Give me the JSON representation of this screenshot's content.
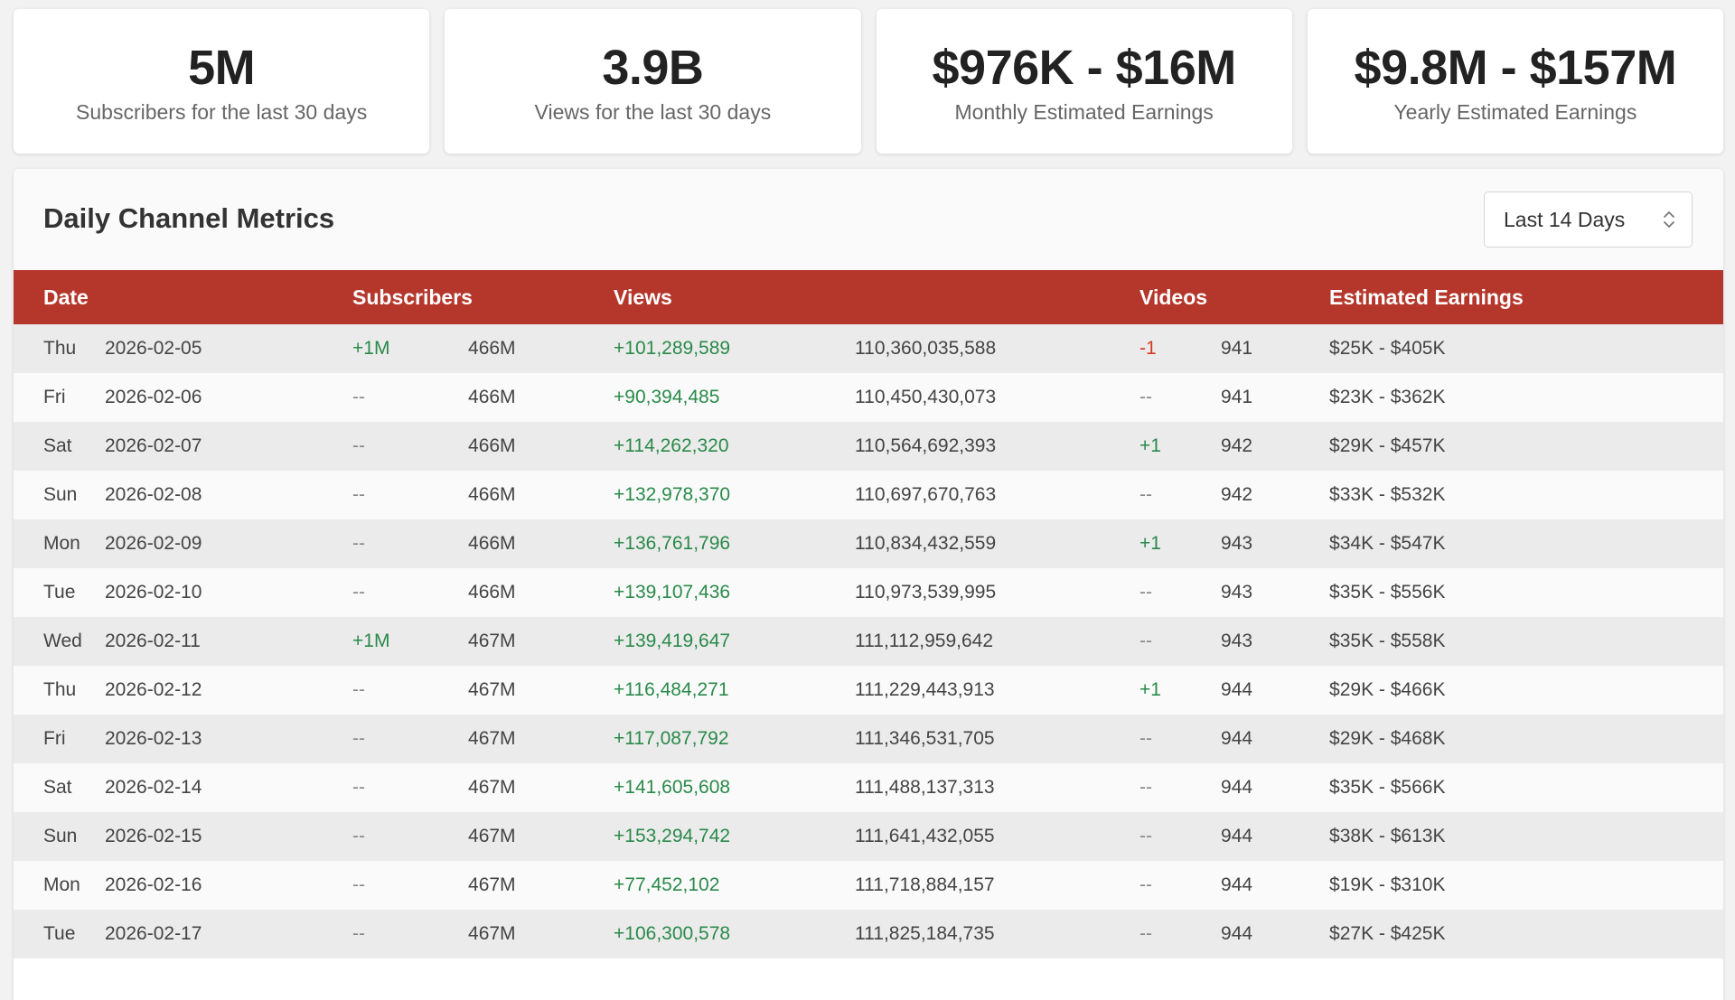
{
  "stats": [
    {
      "value": "5M",
      "label": "Subscribers for the last 30 days"
    },
    {
      "value": "3.9B",
      "label": "Views for the last 30 days"
    },
    {
      "value": "$976K - $16M",
      "label": "Monthly Estimated Earnings"
    },
    {
      "value": "$9.8M - $157M",
      "label": "Yearly Estimated Earnings"
    }
  ],
  "metrics": {
    "title": "Daily Channel Metrics",
    "range": "Last 14 Days",
    "columns": [
      "Date",
      "Subscribers",
      "Views",
      "Videos",
      "Estimated Earnings"
    ],
    "rows": [
      {
        "day": "Thu",
        "date": "2026-02-05",
        "sub_delta": "+1M",
        "sub_total": "466M",
        "views_delta": "+101,289,589",
        "views_total": "110,360,035,588",
        "vid_delta": "-1",
        "vid_total": "941",
        "earnings": "$25K - $405K"
      },
      {
        "day": "Fri",
        "date": "2026-02-06",
        "sub_delta": "--",
        "sub_total": "466M",
        "views_delta": "+90,394,485",
        "views_total": "110,450,430,073",
        "vid_delta": "--",
        "vid_total": "941",
        "earnings": "$23K - $362K"
      },
      {
        "day": "Sat",
        "date": "2026-02-07",
        "sub_delta": "--",
        "sub_total": "466M",
        "views_delta": "+114,262,320",
        "views_total": "110,564,692,393",
        "vid_delta": "+1",
        "vid_total": "942",
        "earnings": "$29K - $457K"
      },
      {
        "day": "Sun",
        "date": "2026-02-08",
        "sub_delta": "--",
        "sub_total": "466M",
        "views_delta": "+132,978,370",
        "views_total": "110,697,670,763",
        "vid_delta": "--",
        "vid_total": "942",
        "earnings": "$33K - $532K"
      },
      {
        "day": "Mon",
        "date": "2026-02-09",
        "sub_delta": "--",
        "sub_total": "466M",
        "views_delta": "+136,761,796",
        "views_total": "110,834,432,559",
        "vid_delta": "+1",
        "vid_total": "943",
        "earnings": "$34K - $547K"
      },
      {
        "day": "Tue",
        "date": "2026-02-10",
        "sub_delta": "--",
        "sub_total": "466M",
        "views_delta": "+139,107,436",
        "views_total": "110,973,539,995",
        "vid_delta": "--",
        "vid_total": "943",
        "earnings": "$35K - $556K"
      },
      {
        "day": "Wed",
        "date": "2026-02-11",
        "sub_delta": "+1M",
        "sub_total": "467M",
        "views_delta": "+139,419,647",
        "views_total": "111,112,959,642",
        "vid_delta": "--",
        "vid_total": "943",
        "earnings": "$35K - $558K"
      },
      {
        "day": "Thu",
        "date": "2026-02-12",
        "sub_delta": "--",
        "sub_total": "467M",
        "views_delta": "+116,484,271",
        "views_total": "111,229,443,913",
        "vid_delta": "+1",
        "vid_total": "944",
        "earnings": "$29K - $466K"
      },
      {
        "day": "Fri",
        "date": "2026-02-13",
        "sub_delta": "--",
        "sub_total": "467M",
        "views_delta": "+117,087,792",
        "views_total": "111,346,531,705",
        "vid_delta": "--",
        "vid_total": "944",
        "earnings": "$29K - $468K"
      },
      {
        "day": "Sat",
        "date": "2026-02-14",
        "sub_delta": "--",
        "sub_total": "467M",
        "views_delta": "+141,605,608",
        "views_total": "111,488,137,313",
        "vid_delta": "--",
        "vid_total": "944",
        "earnings": "$35K - $566K"
      },
      {
        "day": "Sun",
        "date": "2026-02-15",
        "sub_delta": "--",
        "sub_total": "467M",
        "views_delta": "+153,294,742",
        "views_total": "111,641,432,055",
        "vid_delta": "--",
        "vid_total": "944",
        "earnings": "$38K - $613K"
      },
      {
        "day": "Mon",
        "date": "2026-02-16",
        "sub_delta": "--",
        "sub_total": "467M",
        "views_delta": "+77,452,102",
        "views_total": "111,718,884,157",
        "vid_delta": "--",
        "vid_total": "944",
        "earnings": "$19K - $310K"
      },
      {
        "day": "Tue",
        "date": "2026-02-17",
        "sub_delta": "--",
        "sub_total": "467M",
        "views_delta": "+106,300,578",
        "views_total": "111,825,184,735",
        "vid_delta": "--",
        "vid_total": "944",
        "earnings": "$27K - $425K"
      }
    ]
  },
  "icons": {
    "range_select": "chevron-up-down-icon"
  },
  "colors": {
    "header": "#b5372c",
    "positive": "#2a8a4a",
    "negative": "#d23a2a"
  }
}
